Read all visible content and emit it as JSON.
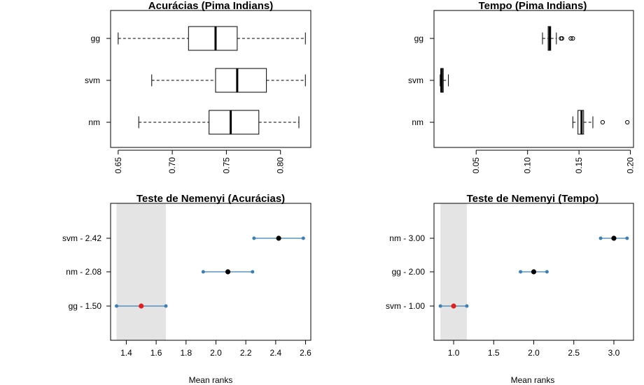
{
  "chart_data": [
    {
      "type": "boxplot",
      "title": "Acurácias (Pima Indians)",
      "orientation": "horizontal",
      "xlim": [
        0.643,
        0.828
      ],
      "xticks": [
        "0.65",
        "0.70",
        "0.75",
        "0.80"
      ],
      "xtick_values": [
        0.65,
        0.7,
        0.75,
        0.8
      ],
      "categories": [
        "gg",
        "svm",
        "nm"
      ],
      "boxes": [
        {
          "name": "gg",
          "min": 0.65,
          "q1": 0.715,
          "median": 0.74,
          "q3": 0.76,
          "max": 0.823,
          "outliers": []
        },
        {
          "name": "svm",
          "min": 0.681,
          "q1": 0.74,
          "median": 0.76,
          "q3": 0.787,
          "max": 0.823,
          "outliers": []
        },
        {
          "name": "nm",
          "min": 0.669,
          "q1": 0.734,
          "median": 0.754,
          "q3": 0.78,
          "max": 0.817,
          "outliers": []
        }
      ]
    },
    {
      "type": "boxplot",
      "title": "Tempo (Pima Indians)",
      "orientation": "horizontal",
      "xlim": [
        0.009,
        0.203
      ],
      "xticks": [
        "0.05",
        "0.10",
        "0.15",
        "0.20"
      ],
      "xtick_values": [
        0.05,
        0.1,
        0.15,
        0.2
      ],
      "categories": [
        "gg",
        "svm",
        "nm"
      ],
      "boxes": [
        {
          "name": "gg",
          "min": 0.1145,
          "q1": 0.12,
          "median": 0.1215,
          "q3": 0.1225,
          "max": 0.128,
          "outliers": [
            0.1325,
            0.1335,
            0.142,
            0.144
          ]
        },
        {
          "name": "svm",
          "min": 0.015,
          "q1": 0.0155,
          "median": 0.0165,
          "q3": 0.018,
          "max": 0.023,
          "outliers": []
        },
        {
          "name": "nm",
          "min": 0.144,
          "q1": 0.149,
          "median": 0.1525,
          "q3": 0.1545,
          "max": 0.1635,
          "outliers": [
            0.173,
            0.197
          ]
        }
      ]
    },
    {
      "type": "interval",
      "title": "Teste de Nemenyi (Acurácias)",
      "xlabel": "Mean ranks",
      "xlim": [
        1.295,
        2.635
      ],
      "xticks": [
        "1.4",
        "1.6",
        "1.8",
        "2.0",
        "2.2",
        "2.4",
        "2.6"
      ],
      "xtick_values": [
        1.4,
        1.6,
        1.8,
        2.0,
        2.2,
        2.4,
        2.6
      ],
      "band": [
        1.335,
        1.665
      ],
      "band_color": "#e4e4e4",
      "line_color": "#3a7fb5",
      "highlight_color": "#e02020",
      "categories": [
        "svm - 2.42",
        "nm - 2.08",
        "gg - 1.50"
      ],
      "intervals": [
        {
          "label": "svm - 2.42",
          "center": 2.42,
          "low": 2.255,
          "high": 2.585,
          "highlight": false
        },
        {
          "label": "nm - 2.08",
          "center": 2.08,
          "low": 1.915,
          "high": 2.245,
          "highlight": false
        },
        {
          "label": "gg - 1.50",
          "center": 1.5,
          "low": 1.335,
          "high": 1.665,
          "highlight": true
        }
      ]
    },
    {
      "type": "interval",
      "title": "Teste de Nemenyi (Tempo)",
      "xlabel": "Mean ranks",
      "xlim": [
        0.755,
        3.245
      ],
      "xticks": [
        "1.0",
        "1.5",
        "2.0",
        "2.5",
        "3.0"
      ],
      "xtick_values": [
        1.0,
        1.5,
        2.0,
        2.5,
        3.0
      ],
      "band": [
        0.835,
        1.165
      ],
      "band_color": "#e4e4e4",
      "line_color": "#3a7fb5",
      "highlight_color": "#e02020",
      "categories": [
        "nm - 3.00",
        "gg - 2.00",
        "svm - 1.00"
      ],
      "intervals": [
        {
          "label": "nm - 3.00",
          "center": 3.0,
          "low": 2.835,
          "high": 3.165,
          "highlight": false
        },
        {
          "label": "gg - 2.00",
          "center": 2.0,
          "low": 1.835,
          "high": 2.165,
          "highlight": false
        },
        {
          "label": "svm - 1.00",
          "center": 1.0,
          "low": 0.835,
          "high": 1.165,
          "highlight": true
        }
      ]
    }
  ]
}
